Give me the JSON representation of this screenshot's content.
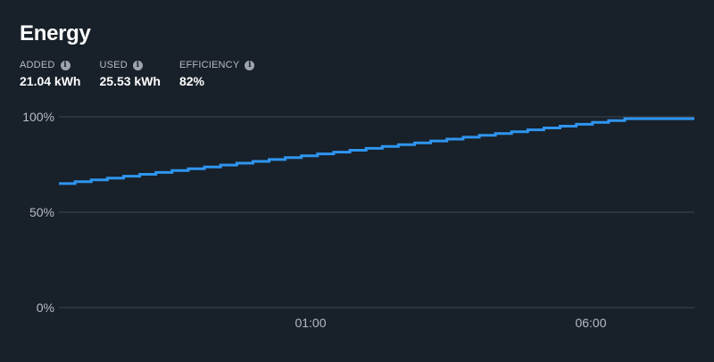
{
  "header": {
    "title": "Energy"
  },
  "stats": [
    {
      "label": "ADDED",
      "value": "21.04 kWh",
      "icon": "info-icon"
    },
    {
      "label": "USED",
      "value": "25.53 kWh",
      "icon": "info-icon"
    },
    {
      "label": "EFFICIENCY",
      "value": "82%",
      "icon": "info-icon"
    }
  ],
  "colors": {
    "background": "#182029",
    "line": "#2f95f0",
    "grid": "#3e4650",
    "tick": "#b7bcc3"
  },
  "chart_data": {
    "type": "line",
    "title": "",
    "xlabel": "",
    "ylabel": "",
    "ylim": [
      0,
      100
    ],
    "y_ticks": [
      {
        "value": 100,
        "label": "100%"
      },
      {
        "value": 50,
        "label": "50%"
      },
      {
        "value": 0,
        "label": "0%"
      }
    ],
    "x_ticks": [
      "01:00",
      "06:00"
    ],
    "grid": true,
    "step": true,
    "series": [
      {
        "start": 65,
        "end": 99,
        "steps": 35
      }
    ]
  }
}
